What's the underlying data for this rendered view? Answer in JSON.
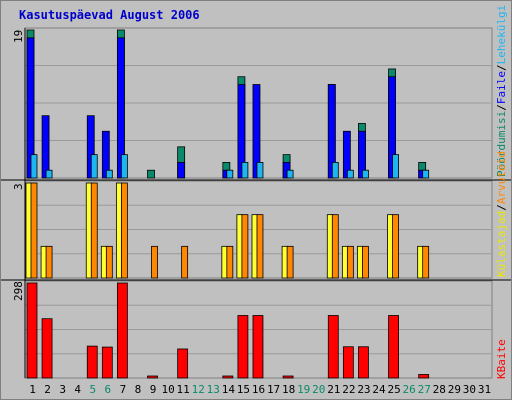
{
  "title": "Kasutuspäevad August 2006",
  "colors": {
    "frame_bg": "#c0c0c0",
    "grid": "#9a9a9a",
    "divider": "#000000",
    "hits": "#0000ff",
    "hits_pages_label": "#0000ff",
    "pages": "#1eb6f0",
    "visits": "#ff8800",
    "visitors": "#ffff33",
    "visits_top": "#ffd000",
    "bytes": "#ff0000",
    "weekday_label": "#000000",
    "weekend_label": "#0a8a6a"
  },
  "chart_data": [
    {
      "type": "bar",
      "title": "Kasutuspäevad August 2006",
      "panel": "top",
      "ymax_label": "19",
      "ylim": [
        0,
        19
      ],
      "categories": [
        "1",
        "2",
        "3",
        "4",
        "5",
        "6",
        "7",
        "8",
        "9",
        "10",
        "11",
        "12",
        "13",
        "14",
        "15",
        "16",
        "17",
        "18",
        "19",
        "20",
        "21",
        "22",
        "23",
        "24",
        "25",
        "26",
        "27",
        "28",
        "29",
        "30",
        "31"
      ],
      "series": [
        {
          "name": "Pöördumisi",
          "color": "#0a8a6a",
          "values": [
            19,
            0,
            0,
            0,
            0,
            0,
            19,
            0,
            1,
            0,
            4,
            0,
            0,
            2,
            13,
            0,
            0,
            3,
            0,
            0,
            12,
            0,
            7,
            0,
            14,
            0,
            2,
            0,
            0,
            0,
            0
          ]
        },
        {
          "name": "Faile",
          "color": "#0000ff",
          "values": [
            18,
            8,
            0,
            0,
            8,
            6,
            18,
            0,
            0,
            0,
            2,
            0,
            0,
            1,
            12,
            12,
            0,
            2,
            0,
            0,
            12,
            6,
            6,
            0,
            13,
            0,
            1,
            0,
            0,
            0,
            0
          ]
        },
        {
          "name": "Lehekülgi",
          "color": "#1eb6f0",
          "values": [
            3,
            1,
            0,
            0,
            3,
            1,
            3,
            0,
            0,
            0,
            0,
            0,
            0,
            1,
            2,
            2,
            0,
            1,
            0,
            0,
            2,
            1,
            1,
            0,
            3,
            0,
            1,
            0,
            0,
            0,
            0
          ]
        }
      ]
    },
    {
      "type": "bar",
      "panel": "middle",
      "ymax_label": "3",
      "ylim": [
        0,
        3
      ],
      "categories": [
        "1",
        "2",
        "3",
        "4",
        "5",
        "6",
        "7",
        "8",
        "9",
        "10",
        "11",
        "12",
        "13",
        "14",
        "15",
        "16",
        "17",
        "18",
        "19",
        "20",
        "21",
        "22",
        "23",
        "24",
        "25",
        "26",
        "27",
        "28",
        "29",
        "30",
        "31"
      ],
      "series": [
        {
          "name": "Külastajad",
          "color": "#ffff33",
          "values": [
            3,
            1,
            0,
            0,
            3,
            1,
            3,
            0,
            0,
            0,
            0,
            0,
            0,
            1,
            2,
            2,
            0,
            1,
            0,
            0,
            2,
            1,
            1,
            0,
            2,
            0,
            1,
            0,
            0,
            0,
            0
          ]
        },
        {
          "name": "Arvuteid",
          "color": "#ff8800",
          "values": [
            3,
            1,
            0,
            0,
            3,
            1,
            3,
            0,
            1,
            0,
            1,
            0,
            0,
            1,
            2,
            2,
            0,
            1,
            0,
            0,
            2,
            1,
            1,
            0,
            2,
            0,
            1,
            0,
            0,
            0,
            0
          ]
        }
      ]
    },
    {
      "type": "bar",
      "panel": "bottom",
      "ymax_label": "298",
      "ylim": [
        0,
        298
      ],
      "categories": [
        "1",
        "2",
        "3",
        "4",
        "5",
        "6",
        "7",
        "8",
        "9",
        "10",
        "11",
        "12",
        "13",
        "14",
        "15",
        "16",
        "17",
        "18",
        "19",
        "20",
        "21",
        "22",
        "23",
        "24",
        "25",
        "26",
        "27",
        "28",
        "29",
        "30",
        "31"
      ],
      "series": [
        {
          "name": "KBaite",
          "color": "#ff0000",
          "values": [
            298,
            186,
            0,
            0,
            100,
            97,
            298,
            0,
            5,
            0,
            91,
            0,
            0,
            5,
            196,
            196,
            0,
            5,
            0,
            0,
            196,
            98,
            98,
            0,
            196,
            0,
            11,
            0,
            0,
            0,
            0
          ]
        }
      ]
    }
  ],
  "x_labels": [
    {
      "text": "1",
      "weekend": false
    },
    {
      "text": "2",
      "weekend": false
    },
    {
      "text": "3",
      "weekend": false
    },
    {
      "text": "4",
      "weekend": false
    },
    {
      "text": "5",
      "weekend": true
    },
    {
      "text": "6",
      "weekend": true
    },
    {
      "text": "7",
      "weekend": false
    },
    {
      "text": "8",
      "weekend": false
    },
    {
      "text": "9",
      "weekend": false
    },
    {
      "text": "10",
      "weekend": false
    },
    {
      "text": "11",
      "weekend": false
    },
    {
      "text": "12",
      "weekend": true
    },
    {
      "text": "13",
      "weekend": true
    },
    {
      "text": "14",
      "weekend": false
    },
    {
      "text": "15",
      "weekend": false
    },
    {
      "text": "16",
      "weekend": false
    },
    {
      "text": "17",
      "weekend": false
    },
    {
      "text": "18",
      "weekend": false
    },
    {
      "text": "19",
      "weekend": true
    },
    {
      "text": "20",
      "weekend": true
    },
    {
      "text": "21",
      "weekend": false
    },
    {
      "text": "22",
      "weekend": false
    },
    {
      "text": "23",
      "weekend": false
    },
    {
      "text": "24",
      "weekend": false
    },
    {
      "text": "25",
      "weekend": false
    },
    {
      "text": "26",
      "weekend": true
    },
    {
      "text": "27",
      "weekend": true
    },
    {
      "text": "28",
      "weekend": false
    },
    {
      "text": "29",
      "weekend": false
    },
    {
      "text": "30",
      "weekend": false
    },
    {
      "text": "31",
      "weekend": false
    }
  ],
  "legend_right": {
    "top": [
      {
        "text": "Pöördumisi",
        "color": "#0a8a6a"
      },
      {
        "text": "/",
        "color": "#000000"
      },
      {
        "text": "Faile",
        "color": "#0000ff"
      },
      {
        "text": "/",
        "color": "#000000"
      },
      {
        "text": "Lehekülgi",
        "color": "#1eb6f0"
      }
    ],
    "middle": [
      {
        "text": "Külastajad",
        "color": "#e8e800"
      },
      {
        "text": "/",
        "color": "#000000"
      },
      {
        "text": "Arvuteid",
        "color": "#ff8800"
      }
    ],
    "bottom": [
      {
        "text": "KBaite",
        "color": "#ff0000"
      }
    ]
  }
}
